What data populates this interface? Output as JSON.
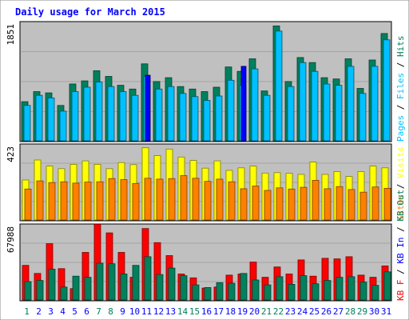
{
  "chart_data": {
    "type": "bar",
    "title": "Daily usage for March 2015",
    "colors": {
      "hits": "#00805c",
      "files": "#00c0ff",
      "pages": "#0000ff",
      "visits": "#ffff00",
      "sites": "#ff8000",
      "kb_in": "#ff0000",
      "kb_out": "#00805c",
      "plot_bg": "#c0c0c0",
      "frame_bg": "#ffffff",
      "title": "#0000ff",
      "weekend_label": "#00805c",
      "weekday_label": "#0000ff"
    },
    "categories": [
      "1",
      "2",
      "3",
      "4",
      "5",
      "6",
      "7",
      "8",
      "9",
      "10",
      "11",
      "12",
      "13",
      "14",
      "15",
      "16",
      "17",
      "18",
      "19",
      "20",
      "21",
      "22",
      "23",
      "24",
      "25",
      "26",
      "27",
      "28",
      "29",
      "30",
      "31"
    ],
    "weekend_days": [
      "1",
      "7",
      "8",
      "14",
      "15",
      "21",
      "22",
      "28",
      "29"
    ],
    "panels": [
      {
        "id": "top",
        "ymax_label": "1851",
        "ymax": 1851,
        "side_label": [
          {
            "text": "Pages",
            "color": "#00c0ff"
          },
          {
            "text": " / ",
            "color": "#000000"
          },
          {
            "text": "Files",
            "color": "#00c0ff"
          },
          {
            "text": " / ",
            "color": "#000000"
          },
          {
            "text": "Hits",
            "color": "#00805c"
          }
        ],
        "series": [
          {
            "name": "Hits",
            "color": "#00805c",
            "values": [
              620,
              780,
              760,
              560,
              900,
              950,
              1110,
              1020,
              880,
              820,
              1220,
              940,
              1000,
              860,
              820,
              780,
              850,
              1170,
              1100,
              1300,
              790,
              1820,
              940,
              1320,
              1240,
              1000,
              980,
              1300,
              830,
              1280,
              1700
            ]
          },
          {
            "name": "Files",
            "color": "#00c0ff",
            "values": [
              560,
              720,
              680,
              470,
              780,
              850,
              930,
              860,
              780,
              720,
              1020,
              820,
              860,
              750,
              700,
              640,
              710,
              960,
              880,
              1140,
              720,
              1740,
              860,
              1240,
              1100,
              900,
              880,
              1180,
              750,
              1180,
              1600
            ]
          },
          {
            "name": "Pages",
            "color": "#0000ff",
            "values": [
              0,
              0,
              0,
              0,
              0,
              0,
              0,
              0,
              0,
              0,
              1040,
              0,
              0,
              0,
              0,
              0,
              0,
              0,
              1180,
              0,
              0,
              0,
              0,
              0,
              0,
              0,
              0,
              0,
              0,
              0,
              0
            ]
          }
        ]
      },
      {
        "id": "middle",
        "ymax_label": "423",
        "ymax": 423,
        "side_label": [
          {
            "text": "Sites",
            "color": "#ff8000"
          },
          {
            "text": " / ",
            "color": "#000000"
          },
          {
            "text": "Visits",
            "color": "#ffff00"
          }
        ],
        "series": [
          {
            "name": "Visits",
            "color": "#ffff00",
            "values": [
              230,
              345,
              310,
              295,
              320,
              340,
              320,
              295,
              330,
              318,
              415,
              370,
              408,
              362,
              342,
              298,
              340,
              285,
              300,
              310,
              270,
              272,
              268,
              262,
              333,
              262,
              278,
              250,
              278,
              310,
              300
            ]
          },
          {
            "name": "Sites",
            "color": "#ff8000",
            "values": [
              178,
              225,
              215,
              220,
              212,
              218,
              220,
              238,
              232,
              210,
              240,
              235,
              238,
              255,
              240,
              222,
              235,
              220,
              180,
              195,
              170,
              185,
              178,
              188,
              228,
              180,
              192,
              175,
              160,
              190,
              182
            ]
          }
        ]
      },
      {
        "id": "bottom",
        "ymax_label": "67988",
        "ymax": 67988,
        "side_label": [
          {
            "text": "KB F",
            "color": "#ff0000"
          },
          {
            "text": " / ",
            "color": "#000000"
          },
          {
            "text": "KB In",
            "color": "#0000ff"
          },
          {
            "text": " / ",
            "color": "#000000"
          },
          {
            "text": "KB Out",
            "color": "#00805c"
          }
        ],
        "series": [
          {
            "name": "KB In",
            "color": "#ff0000",
            "values": [
              32000,
              24500,
              52000,
              29000,
              10500,
              44000,
              70000,
              62000,
              44000,
              21000,
              66000,
              53000,
              41000,
              24000,
              20500,
              11000,
              12000,
              23000,
              24000,
              35000,
              21000,
              30500,
              24000,
              37000,
              22000,
              38500,
              38000,
              40000,
              23000,
              21000,
              31500
            ]
          },
          {
            "name": "KB Out",
            "color": "#00805c",
            "values": [
              17000,
              18000,
              28500,
              12000,
              22000,
              21000,
              34000,
              33500,
              24000,
              32000,
              40000,
              23500,
              29500,
              22500,
              14000,
              11500,
              16000,
              15500,
              24500,
              18500,
              14000,
              21500,
              14500,
              22500,
              15000,
              18000,
              21000,
              21500,
              16500,
              13500,
              26000
            ]
          }
        ]
      }
    ]
  }
}
